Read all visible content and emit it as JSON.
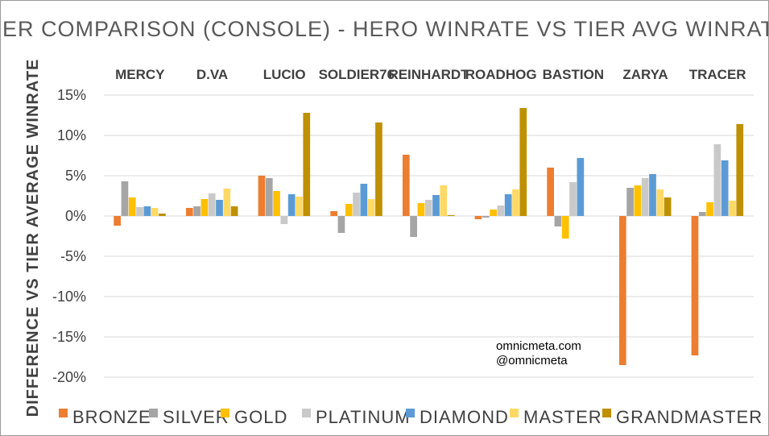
{
  "chart_data": {
    "type": "bar",
    "title": "TIER COMPARISON (CONSOLE) - HERO WINRATE VS TIER AVG WINRATE",
    "xlabel": "",
    "ylabel": "DIFFERENCE VS TIER AVERAGE WINRATE",
    "ylim": [
      -0.2,
      0.15
    ],
    "yticks": [
      {
        "value": 0.15,
        "label": "15%"
      },
      {
        "value": 0.1,
        "label": "10%"
      },
      {
        "value": 0.05,
        "label": "5%"
      },
      {
        "value": 0.0,
        "label": "0%"
      },
      {
        "value": -0.05,
        "label": "-5%"
      },
      {
        "value": -0.1,
        "label": "-10%"
      },
      {
        "value": -0.15,
        "label": "-15%"
      },
      {
        "value": -0.2,
        "label": "-20%"
      }
    ],
    "grid": true,
    "legend_position": "bottom",
    "categories": [
      "MERCY",
      "D.VA",
      "LUCIO",
      "SOLDIER76",
      "REINHARDT",
      "ROADHOG",
      "BASTION",
      "ZARYA",
      "TRACER"
    ],
    "series": [
      {
        "name": "BRONZE",
        "color": "#ED7D31",
        "values": [
          -0.012,
          0.01,
          0.05,
          0.006,
          0.076,
          -0.004,
          0.06,
          -0.185,
          -0.173
        ]
      },
      {
        "name": "SILVER",
        "color": "#A5A5A5",
        "values": [
          0.043,
          0.012,
          0.047,
          -0.021,
          -0.026,
          -0.002,
          -0.013,
          0.035,
          0.005
        ]
      },
      {
        "name": "GOLD",
        "color": "#FFC000",
        "values": [
          0.023,
          0.021,
          0.031,
          0.015,
          0.016,
          0.008,
          -0.028,
          0.038,
          0.017
        ]
      },
      {
        "name": "PLATINUM",
        "color": "#C9C9C9",
        "values": [
          0.011,
          0.028,
          -0.01,
          0.029,
          0.02,
          0.013,
          0.042,
          0.047,
          0.089
        ]
      },
      {
        "name": "DIAMOND",
        "color": "#5B9BD5",
        "values": [
          0.012,
          0.02,
          0.027,
          0.04,
          0.026,
          0.027,
          0.072,
          0.052,
          0.069
        ]
      },
      {
        "name": "MASTER",
        "color": "#FFD966",
        "values": [
          0.01,
          0.034,
          0.024,
          0.021,
          0.038,
          0.033,
          0.0,
          0.033,
          0.019
        ]
      },
      {
        "name": "GRANDMASTER",
        "color": "#BF9000",
        "values": [
          0.003,
          0.012,
          0.128,
          0.116,
          0.001,
          0.134,
          0.0,
          0.023,
          0.114
        ]
      }
    ],
    "annotations": [
      "omnicmeta.com",
      "@omnicmeta"
    ]
  }
}
